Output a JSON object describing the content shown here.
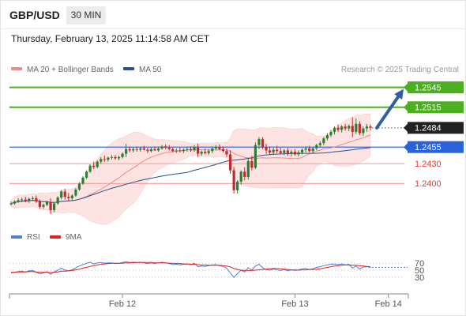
{
  "header": {
    "symbol": "GBP/USD",
    "timeframe": "30 MIN",
    "datetime": "Thursday, February 13, 2025 11:14:58 AM CET"
  },
  "legend": {
    "ma20": {
      "label": "MA 20 + Bollinger Bands",
      "color": "#f08a84"
    },
    "ma50": {
      "label": "MA 50",
      "color": "#2f4f8a"
    },
    "rsi": {
      "label": "RSI",
      "color": "#4f7fd6"
    },
    "rsi_ma": {
      "label": "9MA",
      "color": "#e02020"
    }
  },
  "watermark": "Research © 2025 Trading Central",
  "colors": {
    "up_candle": "#2e7d32",
    "down_candle": "#c62828",
    "target_green": "#4caf20",
    "pivot_blue": "#2962d9",
    "support_red": "#f5a3a3",
    "support_text": "#e53935",
    "arrow": "#2e5fa3",
    "band_fill": "#fde0df"
  },
  "chart_data": {
    "type": "candlestick",
    "instrument": "GBP/USD",
    "interval": "30 MIN",
    "price_range": [
      1.236,
      1.256
    ],
    "x_labels": [
      {
        "label": "Feb 12",
        "index": 31
      },
      {
        "label": "Feb 13",
        "index": 79
      },
      {
        "label": "Feb 14",
        "index": 105
      }
    ],
    "levels": [
      {
        "value": 1.2545,
        "label": "1.2545",
        "kind": "resistance"
      },
      {
        "value": 1.2515,
        "label": "1.2515",
        "kind": "resistance"
      },
      {
        "value": 1.2484,
        "label": "1.2484",
        "kind": "last"
      },
      {
        "value": 1.2455,
        "label": "1.2455",
        "kind": "pivot"
      },
      {
        "value": 1.243,
        "label": "1.2430",
        "kind": "support"
      },
      {
        "value": 1.24,
        "label": "1.2400",
        "kind": "support"
      }
    ],
    "forecast_arrow": {
      "from": 1.2484,
      "to": 1.2545
    },
    "candles": [
      [
        1.2369,
        1.2373,
        1.2367,
        1.237
      ],
      [
        1.237,
        1.2375,
        1.2368,
        1.2373
      ],
      [
        1.2373,
        1.2378,
        1.2371,
        1.2375
      ],
      [
        1.2375,
        1.2379,
        1.2372,
        1.2376
      ],
      [
        1.2376,
        1.238,
        1.2372,
        1.2374
      ],
      [
        1.2374,
        1.2379,
        1.2371,
        1.2377
      ],
      [
        1.2377,
        1.2381,
        1.2374,
        1.2378
      ],
      [
        1.2378,
        1.2382,
        1.2371,
        1.2373
      ],
      [
        1.2373,
        1.2376,
        1.2362,
        1.2365
      ],
      [
        1.2365,
        1.237,
        1.2362,
        1.2368
      ],
      [
        1.2368,
        1.2374,
        1.2366,
        1.2372
      ],
      [
        1.2372,
        1.2378,
        1.2354,
        1.236
      ],
      [
        1.236,
        1.2372,
        1.2357,
        1.237
      ],
      [
        1.237,
        1.2381,
        1.2368,
        1.2379
      ],
      [
        1.2379,
        1.239,
        1.2376,
        1.2388
      ],
      [
        1.2388,
        1.2392,
        1.2376,
        1.238
      ],
      [
        1.238,
        1.2386,
        1.2374,
        1.2378
      ],
      [
        1.2378,
        1.2384,
        1.2374,
        1.2382
      ],
      [
        1.2382,
        1.2393,
        1.238,
        1.2391
      ],
      [
        1.2391,
        1.2402,
        1.2389,
        1.24
      ],
      [
        1.24,
        1.2411,
        1.2398,
        1.2409
      ],
      [
        1.2409,
        1.242,
        1.2407,
        1.2418
      ],
      [
        1.2418,
        1.2429,
        1.2416,
        1.2427
      ],
      [
        1.2427,
        1.2433,
        1.2422,
        1.2425
      ],
      [
        1.2425,
        1.2435,
        1.2423,
        1.2433
      ],
      [
        1.2433,
        1.244,
        1.243,
        1.2437
      ],
      [
        1.2437,
        1.2442,
        1.2433,
        1.2436
      ],
      [
        1.2436,
        1.2441,
        1.2433,
        1.2439
      ],
      [
        1.2439,
        1.2443,
        1.2436,
        1.244
      ],
      [
        1.244,
        1.2443,
        1.2436,
        1.2438
      ],
      [
        1.2438,
        1.2442,
        1.2435,
        1.244
      ],
      [
        1.244,
        1.2447,
        1.2438,
        1.2445
      ],
      [
        1.2445,
        1.246,
        1.244,
        1.2452
      ],
      [
        1.2452,
        1.2456,
        1.2447,
        1.245
      ],
      [
        1.245,
        1.2455,
        1.2447,
        1.2452
      ],
      [
        1.2452,
        1.2456,
        1.2448,
        1.2451
      ],
      [
        1.2451,
        1.2455,
        1.2448,
        1.2453
      ],
      [
        1.2453,
        1.2457,
        1.245,
        1.2451
      ],
      [
        1.2451,
        1.2454,
        1.2446,
        1.2449
      ],
      [
        1.2449,
        1.2454,
        1.2447,
        1.2452
      ],
      [
        1.2452,
        1.2456,
        1.2449,
        1.245
      ],
      [
        1.245,
        1.2455,
        1.2448,
        1.2453
      ],
      [
        1.2453,
        1.2458,
        1.2451,
        1.2456
      ],
      [
        1.2456,
        1.2459,
        1.2452,
        1.2454
      ],
      [
        1.2454,
        1.2458,
        1.245,
        1.2452
      ],
      [
        1.2452,
        1.2455,
        1.2447,
        1.2449
      ],
      [
        1.2449,
        1.2453,
        1.2446,
        1.245
      ],
      [
        1.245,
        1.2454,
        1.2447,
        1.2449
      ],
      [
        1.2449,
        1.2453,
        1.2446,
        1.2451
      ],
      [
        1.2451,
        1.2455,
        1.2448,
        1.2452
      ],
      [
        1.2452,
        1.2456,
        1.2448,
        1.245
      ],
      [
        1.245,
        1.2458,
        1.2448,
        1.2455
      ],
      [
        1.2455,
        1.246,
        1.244,
        1.2445
      ],
      [
        1.2445,
        1.245,
        1.2442,
        1.2448
      ],
      [
        1.2448,
        1.2453,
        1.2444,
        1.2446
      ],
      [
        1.2446,
        1.2452,
        1.2443,
        1.2449
      ],
      [
        1.2449,
        1.2455,
        1.2446,
        1.2453
      ],
      [
        1.2453,
        1.2458,
        1.245,
        1.2455
      ],
      [
        1.2455,
        1.2459,
        1.245,
        1.2452
      ],
      [
        1.2452,
        1.2456,
        1.2447,
        1.2449
      ],
      [
        1.2449,
        1.2453,
        1.244,
        1.2444
      ],
      [
        1.2444,
        1.245,
        1.2415,
        1.242
      ],
      [
        1.242,
        1.2425,
        1.2385,
        1.239
      ],
      [
        1.239,
        1.2405,
        1.2385,
        1.2403
      ],
      [
        1.2403,
        1.242,
        1.2398,
        1.2418
      ],
      [
        1.2418,
        1.2425,
        1.2405,
        1.241
      ],
      [
        1.241,
        1.2438,
        1.2406,
        1.2434
      ],
      [
        1.2434,
        1.2442,
        1.242,
        1.2424
      ],
      [
        1.2424,
        1.2462,
        1.2422,
        1.2458
      ],
      [
        1.2458,
        1.247,
        1.2452,
        1.2467
      ],
      [
        1.2467,
        1.247,
        1.2452,
        1.2455
      ],
      [
        1.2455,
        1.246,
        1.2445,
        1.245
      ],
      [
        1.245,
        1.2456,
        1.2444,
        1.2447
      ],
      [
        1.2447,
        1.2454,
        1.2443,
        1.2451
      ],
      [
        1.2451,
        1.2457,
        1.2446,
        1.2449
      ],
      [
        1.2449,
        1.2454,
        1.2444,
        1.2446
      ],
      [
        1.2446,
        1.2452,
        1.2443,
        1.245
      ],
      [
        1.245,
        1.2454,
        1.2442,
        1.2445
      ],
      [
        1.2445,
        1.2451,
        1.2441,
        1.2448
      ],
      [
        1.2448,
        1.2452,
        1.2442,
        1.2444
      ],
      [
        1.2444,
        1.245,
        1.2441,
        1.2447
      ],
      [
        1.2447,
        1.2453,
        1.2444,
        1.2451
      ],
      [
        1.2451,
        1.2456,
        1.2447,
        1.2453
      ],
      [
        1.2453,
        1.2457,
        1.2447,
        1.2449
      ],
      [
        1.2449,
        1.2455,
        1.2446,
        1.2453
      ],
      [
        1.2453,
        1.246,
        1.245,
        1.2458
      ],
      [
        1.2458,
        1.2464,
        1.2455,
        1.2461
      ],
      [
        1.2461,
        1.247,
        1.2458,
        1.2468
      ],
      [
        1.2468,
        1.2476,
        1.2465,
        1.2473
      ],
      [
        1.2473,
        1.2481,
        1.247,
        1.2478
      ],
      [
        1.2478,
        1.2486,
        1.2474,
        1.2484
      ],
      [
        1.2484,
        1.2489,
        1.2478,
        1.2481
      ],
      [
        1.2481,
        1.2488,
        1.2477,
        1.2486
      ],
      [
        1.2486,
        1.249,
        1.248,
        1.2483
      ],
      [
        1.2483,
        1.2489,
        1.2479,
        1.2487
      ],
      [
        1.2487,
        1.25,
        1.247,
        1.2478
      ],
      [
        1.2478,
        1.2498,
        1.2475,
        1.249
      ],
      [
        1.249,
        1.2494,
        1.2473,
        1.2476
      ],
      [
        1.2476,
        1.2486,
        1.2472,
        1.2483
      ],
      [
        1.2483,
        1.249,
        1.2478,
        1.2486
      ],
      [
        1.2486,
        1.2489,
        1.248,
        1.2484
      ]
    ],
    "rsi": {
      "levels": [
        70,
        50,
        30
      ],
      "values": [
        42,
        44,
        46,
        47,
        45,
        48,
        49,
        44,
        39,
        42,
        46,
        38,
        45,
        50,
        56,
        50,
        48,
        51,
        57,
        62,
        66,
        70,
        73,
        68,
        71,
        72,
        70,
        71,
        71,
        69,
        70,
        72,
        74,
        72,
        73,
        72,
        73,
        71,
        69,
        71,
        69,
        71,
        73,
        71,
        69,
        66,
        67,
        65,
        67,
        68,
        66,
        70,
        60,
        62,
        61,
        63,
        65,
        66,
        63,
        61,
        56,
        42,
        29,
        40,
        50,
        45,
        57,
        50,
        62,
        67,
        57,
        52,
        50,
        53,
        51,
        49,
        52,
        48,
        51,
        49,
        51,
        54,
        55,
        52,
        54,
        58,
        60,
        63,
        65,
        67,
        68,
        66,
        68,
        65,
        67,
        56,
        62,
        53,
        59,
        60,
        58
      ],
      "ma9": [
        44,
        44,
        45,
        45,
        45,
        46,
        46,
        45,
        44,
        44,
        44,
        43,
        44,
        45,
        47,
        47,
        48,
        49,
        51,
        53,
        56,
        58,
        61,
        63,
        65,
        67,
        68,
        69,
        70,
        70,
        70,
        70,
        71,
        71,
        71,
        72,
        72,
        72,
        72,
        72,
        71,
        71,
        71,
        71,
        70,
        70,
        69,
        69,
        68,
        68,
        67,
        67,
        66,
        65,
        65,
        64,
        64,
        64,
        64,
        63,
        62,
        59,
        55,
        52,
        50,
        49,
        49,
        49,
        50,
        51,
        52,
        53,
        54,
        55,
        55,
        54,
        53,
        52,
        51,
        51,
        50,
        51,
        51,
        52,
        52,
        53,
        54,
        56,
        58,
        60,
        62,
        63,
        64,
        65,
        65,
        64,
        64,
        63,
        62,
        61,
        60
      ]
    }
  }
}
